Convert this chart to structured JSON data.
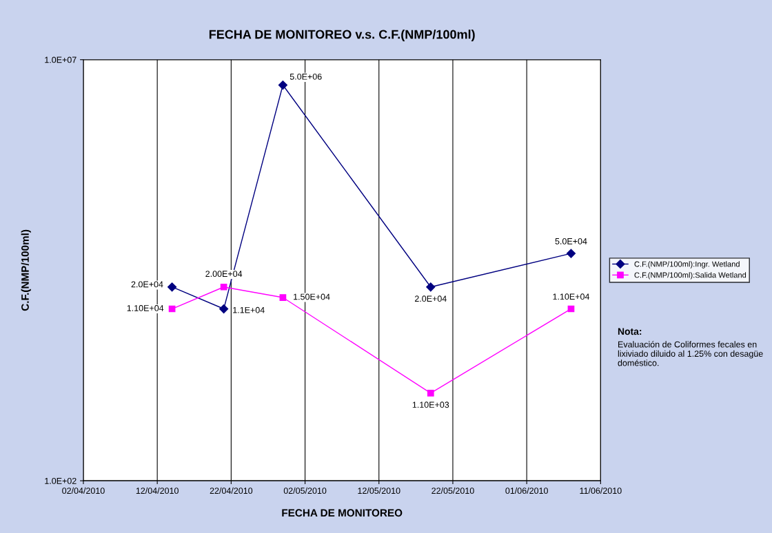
{
  "chart_data": {
    "type": "line",
    "title": "FECHA DE MONITOREO v.s. C.F.(NMP/100ml)",
    "xlabel": "FECHA DE MONITOREO",
    "ylabel": "C.F.(NMP/100ml)",
    "x": [
      "2010-04-14",
      "2010-04-21",
      "2010-04-29",
      "2010-05-19",
      "2010-06-07"
    ],
    "series": [
      {
        "name": "C.F.(NMP/100ml):Ingr. Wetland",
        "color": "#000080",
        "marker": "diamond",
        "values": [
          20000,
          11000,
          5000000,
          20000,
          50000
        ],
        "value_labels": [
          "2.0E+04",
          "1.1E+04",
          "5.0E+06",
          "2.0E+04",
          "5.0E+04"
        ]
      },
      {
        "name": "C.F.(NMP/100ml):Salida Wetland",
        "color": "#ff00ff",
        "marker": "square",
        "values": [
          11000,
          20000,
          15000,
          1100,
          11000
        ],
        "value_labels": [
          "1.10E+04",
          "2.00E+04",
          "1.50E+04",
          "1.10E+03",
          "1.10E+04"
        ]
      }
    ],
    "log": "y",
    "ylim": [
      100,
      10000000
    ],
    "yticks": [
      {
        "value": 100,
        "label": "1.0E+02"
      },
      {
        "value": 10000000,
        "label": "1.0E+07"
      }
    ],
    "xlim": [
      "2010-04-02",
      "2010-06-11"
    ],
    "xticks": [
      {
        "value": "2010-04-02",
        "label": "02/04/2010"
      },
      {
        "value": "2010-04-12",
        "label": "12/04/2010"
      },
      {
        "value": "2010-04-22",
        "label": "22/04/2010"
      },
      {
        "value": "2010-05-02",
        "label": "02/05/2010"
      },
      {
        "value": "2010-05-12",
        "label": "12/05/2010"
      },
      {
        "value": "2010-05-22",
        "label": "22/05/2010"
      },
      {
        "value": "2010-06-01",
        "label": "01/06/2010"
      },
      {
        "value": "2010-06-11",
        "label": "11/06/2010"
      }
    ],
    "grid": true,
    "legend": "right",
    "annotations": [
      "Nota:",
      "Evaluación de Coliformes fecales en lixiviado diluido al 1.25% con desagüe doméstico."
    ]
  }
}
